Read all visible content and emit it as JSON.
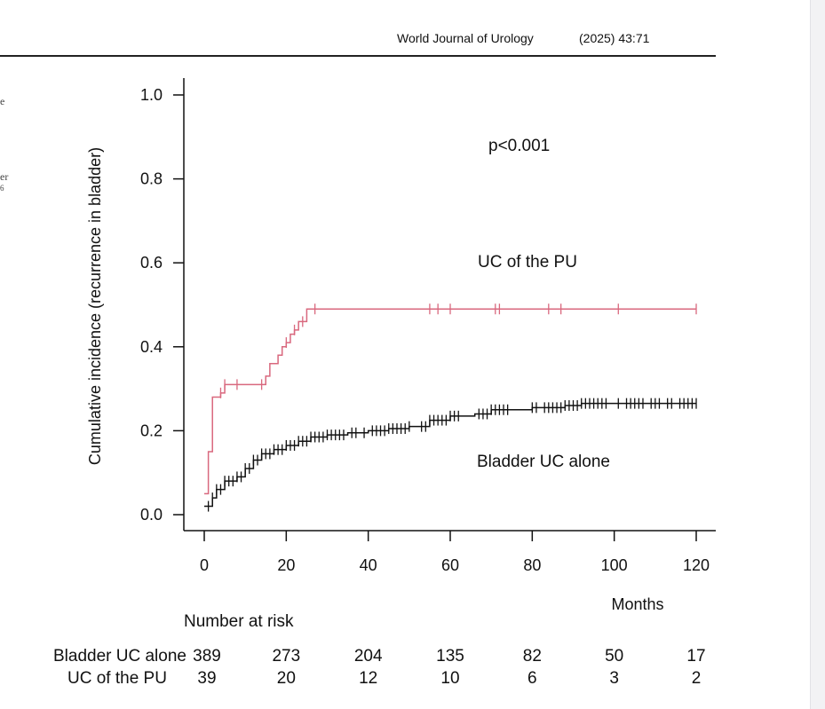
{
  "header": {
    "journal": "World Journal of Urology",
    "citation": "(2025) 43:71"
  },
  "side_fragments": [
    "e",
    "er",
    "6"
  ],
  "colors": {
    "pu": "#d9687e",
    "bladder": "#111111",
    "axis": "#111111",
    "rule": "#222222"
  },
  "chart_data": {
    "type": "line",
    "subtype": "step",
    "ylabel": "Cumulative incidence (recurrence in bladder)",
    "xlabel": "Months",
    "xlim": [
      0,
      120
    ],
    "ylim": [
      0.0,
      1.0
    ],
    "x_ticks": [
      "0",
      "20",
      "40",
      "60",
      "80",
      "100",
      "120"
    ],
    "y_ticks": [
      "0.0",
      "0.2",
      "0.4",
      "0.6",
      "0.8",
      "1.0"
    ],
    "annotation": "p<0.001",
    "grid": false,
    "series": [
      {
        "name": "UC of the PU",
        "color": "#d9687e",
        "steps": [
          [
            0,
            0.05
          ],
          [
            1,
            0.15
          ],
          [
            2,
            0.28
          ],
          [
            4,
            0.29
          ],
          [
            5,
            0.31
          ],
          [
            14,
            0.31
          ],
          [
            15,
            0.33
          ],
          [
            16,
            0.36
          ],
          [
            18,
            0.38
          ],
          [
            19,
            0.4
          ],
          [
            20,
            0.41
          ],
          [
            21,
            0.43
          ],
          [
            22,
            0.44
          ],
          [
            23,
            0.46
          ],
          [
            25,
            0.49
          ],
          [
            120,
            0.49
          ]
        ],
        "censor_x": [
          4,
          5,
          8,
          14,
          20,
          22,
          24,
          27,
          55,
          57,
          60,
          71,
          72,
          84,
          87,
          101,
          120
        ]
      },
      {
        "name": "Bladder UC alone",
        "color": "#111111",
        "steps": [
          [
            0,
            0.02
          ],
          [
            2,
            0.04
          ],
          [
            3,
            0.06
          ],
          [
            5,
            0.08
          ],
          [
            8,
            0.09
          ],
          [
            10,
            0.11
          ],
          [
            12,
            0.13
          ],
          [
            14,
            0.145
          ],
          [
            17,
            0.155
          ],
          [
            20,
            0.165
          ],
          [
            23,
            0.175
          ],
          [
            26,
            0.185
          ],
          [
            30,
            0.19
          ],
          [
            35,
            0.195
          ],
          [
            40,
            0.2
          ],
          [
            45,
            0.205
          ],
          [
            50,
            0.21
          ],
          [
            55,
            0.225
          ],
          [
            60,
            0.235
          ],
          [
            66,
            0.24
          ],
          [
            70,
            0.25
          ],
          [
            80,
            0.255
          ],
          [
            88,
            0.26
          ],
          [
            92,
            0.265
          ],
          [
            120,
            0.265
          ]
        ],
        "censor_x": [
          1,
          2,
          3,
          4,
          5,
          6,
          7,
          8,
          9,
          10,
          11,
          12,
          13,
          14,
          15,
          16,
          17,
          18,
          19,
          20,
          21,
          22,
          23,
          24,
          25,
          26,
          27,
          28,
          29,
          30,
          31,
          32,
          33,
          34,
          36,
          37,
          39,
          41,
          42,
          43,
          44,
          45,
          46,
          47,
          48,
          49,
          50,
          53,
          54,
          55,
          56,
          57,
          58,
          59,
          60,
          61,
          62,
          67,
          68,
          69,
          70,
          71,
          72,
          73,
          74,
          80,
          81,
          83,
          84,
          85,
          86,
          87,
          88,
          89,
          90,
          91,
          92,
          93,
          94,
          95,
          96,
          97,
          98,
          101,
          103,
          104,
          105,
          106,
          107,
          109,
          110,
          111,
          113,
          114,
          116,
          117,
          118,
          119,
          120
        ]
      }
    ],
    "series_labels": [
      "UC of the PU",
      "Bladder UC alone"
    ]
  },
  "risk_table": {
    "title": "Number at risk",
    "rows": [
      {
        "label": "Bladder UC alone",
        "values": [
          "389",
          "273",
          "204",
          "135",
          "82",
          "50",
          "17"
        ]
      },
      {
        "label": "UC of the PU",
        "values": [
          "39",
          "20",
          "12",
          "10",
          "6",
          "3",
          "2"
        ]
      }
    ]
  }
}
